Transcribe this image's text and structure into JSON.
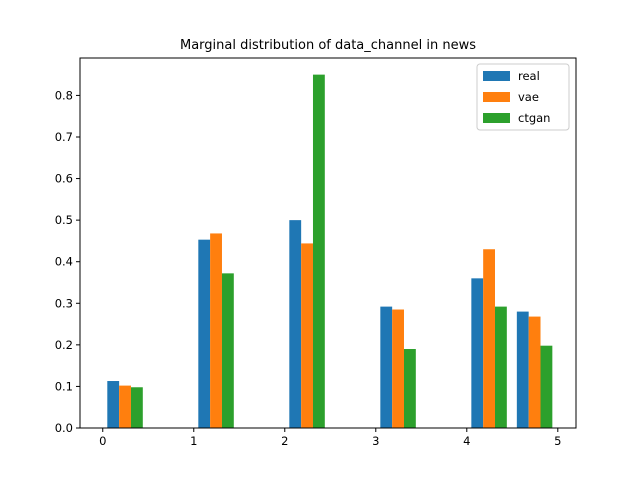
{
  "chart_data": {
    "type": "bar",
    "title": "Marginal distribution of data_channel in news",
    "xlabel": "",
    "ylabel": "",
    "xlim": [
      -0.25,
      5.2
    ],
    "ylim": [
      0,
      0.89
    ],
    "xticks": [
      0,
      1,
      2,
      3,
      4,
      5
    ],
    "yticks": [
      0.0,
      0.1,
      0.2,
      0.3,
      0.4,
      0.5,
      0.6,
      0.7,
      0.8
    ],
    "grid": false,
    "legend_position": "top-right",
    "bar_width": 0.13,
    "bin_left_edges": [
      0.05,
      1.05,
      2.05,
      3.05,
      4.05,
      4.55
    ],
    "series": [
      {
        "name": "real",
        "color": "#1f77b4",
        "values": [
          0.113,
          0.453,
          0.5,
          0.292,
          0.36,
          0.28
        ]
      },
      {
        "name": "vae",
        "color": "#ff7f0e",
        "values": [
          0.102,
          0.468,
          0.444,
          0.285,
          0.43,
          0.268
        ]
      },
      {
        "name": "ctgan",
        "color": "#2ca02c",
        "values": [
          0.098,
          0.372,
          0.85,
          0.19,
          0.292,
          0.198
        ]
      }
    ]
  }
}
